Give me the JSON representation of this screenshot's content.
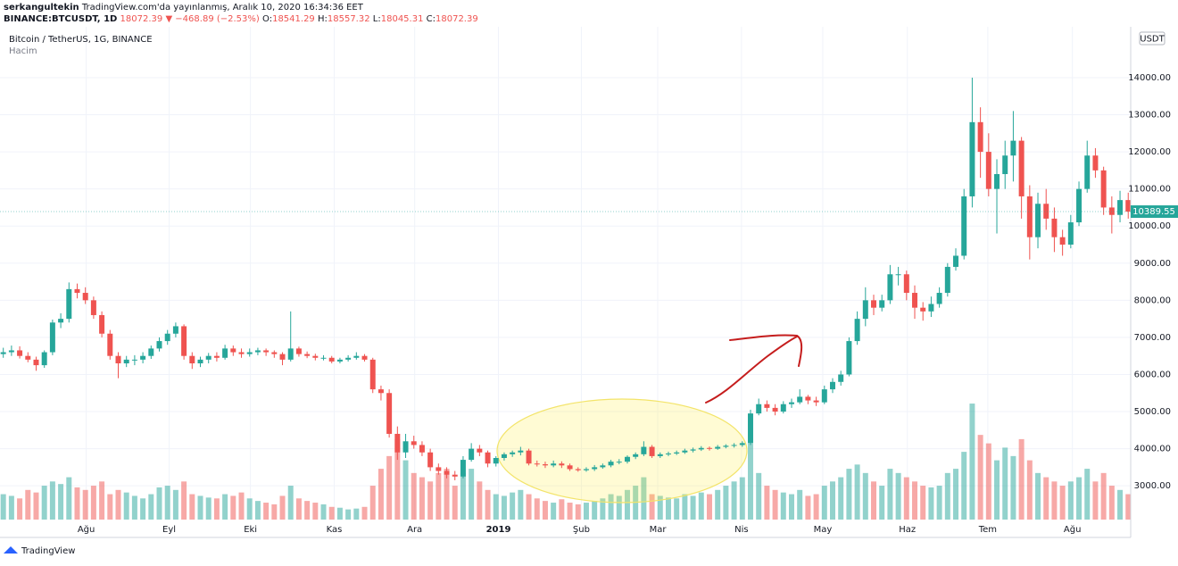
{
  "header": {
    "author": "serkangultekin",
    "published": "TradingView.com'da yayınlanmış, Aralık 10, 2020 16:34:36 EET",
    "symbol": "BINANCE:BTCUSDT, 1D",
    "price": "18072.39",
    "change": "▼ −468.89 (−2.53%)",
    "ohlc": [
      {
        "label": "O:",
        "value": "18541.29"
      },
      {
        "label": "H:",
        "value": "18557.32"
      },
      {
        "label": "L:",
        "value": "18045.31"
      },
      {
        "label": "C:",
        "value": "18072.39"
      }
    ]
  },
  "chart_data": {
    "type": "candlestick",
    "title": "Bitcoin / TetherUS, 1G, BINANCE",
    "volume_label": "Hacim",
    "currency": "USDT",
    "footer": "TradingView",
    "up_color": "#26a69a",
    "down_color": "#ef5350",
    "grid": true,
    "xlim": [
      -0.4,
      137.3
    ],
    "xticks": [
      {
        "value": 10.1,
        "label": "Ağu"
      },
      {
        "value": 20.2,
        "label": "Eyl"
      },
      {
        "value": 30.1,
        "label": "Eki"
      },
      {
        "value": 40.3,
        "label": "Kas"
      },
      {
        "value": 50.1,
        "label": "Ara"
      },
      {
        "value": 60.3,
        "label": "2019"
      },
      {
        "value": 70.4,
        "label": "Şub"
      },
      {
        "value": 79.7,
        "label": "Mar"
      },
      {
        "value": 89.9,
        "label": "Nis"
      },
      {
        "value": 99.8,
        "label": "May"
      },
      {
        "value": 110.1,
        "label": "Haz"
      },
      {
        "value": 119.9,
        "label": "Tem"
      },
      {
        "value": 130.2,
        "label": "Ağu"
      }
    ],
    "ylim": [
      2090,
      15370
    ],
    "yticks": [
      {
        "value": 3000,
        "label": "3000.00"
      },
      {
        "value": 4000,
        "label": "4000.00"
      },
      {
        "value": 5000,
        "label": "5000.00"
      },
      {
        "value": 6000,
        "label": "6000.00"
      },
      {
        "value": 7000,
        "label": "7000.00"
      },
      {
        "value": 8000,
        "label": "8000.00"
      },
      {
        "value": 9000,
        "label": "9000.00"
      },
      {
        "value": 10000,
        "label": "10000.00"
      },
      {
        "value": 11000,
        "label": "11000.00"
      },
      {
        "value": 12000,
        "label": "12000.00"
      },
      {
        "value": 13000,
        "label": "13000.00"
      },
      {
        "value": 14000,
        "label": "14000.00"
      }
    ],
    "vlim": [
      0,
      582
    ],
    "open": [
      6550,
      6600,
      6650,
      6500,
      6400,
      6250,
      6600,
      7400,
      7500,
      8300,
      8200,
      8000,
      7600,
      7100,
      6500,
      6300,
      6400,
      6400,
      6500,
      6700,
      6900,
      7100,
      7300,
      6500,
      6300,
      6400,
      6500,
      6450,
      6700,
      6600,
      6550,
      6600,
      6650,
      6600,
      6550,
      6400,
      6700,
      6550,
      6500,
      6450,
      6450,
      6350,
      6400,
      6450,
      6500,
      6400,
      5600,
      5500,
      4400,
      3900,
      4200,
      4100,
      3900,
      3500,
      3400,
      3300,
      3250,
      3700,
      4000,
      3900,
      3600,
      3750,
      3850,
      3900,
      3950,
      3600,
      3580,
      3550,
      3600,
      3550,
      3450,
      3420,
      3450,
      3500,
      3550,
      3650,
      3650,
      3780,
      3850,
      4050,
      3800,
      3850,
      3870,
      3900,
      3950,
      3980,
      4020,
      4000,
      4050,
      4080,
      4100,
      4150,
      4950,
      5200,
      5100,
      5000,
      5200,
      5250,
      5400,
      5300,
      5250,
      5600,
      5800,
      6000,
      6900,
      7500,
      8000,
      7800,
      8000,
      8700,
      8700,
      8200,
      7800,
      7700,
      7900,
      8200,
      8900,
      9200,
      10800,
      12800,
      12000,
      11000,
      11400,
      11900,
      12300,
      10800,
      9700,
      10600,
      10200,
      9700,
      9500,
      10100,
      11000,
      11900,
      11500,
      10500,
      10300,
      10700
    ],
    "high": [
      6720,
      6780,
      6760,
      6600,
      6480,
      6650,
      7480,
      7650,
      8480,
      8450,
      8350,
      8100,
      7700,
      7200,
      6600,
      6500,
      6520,
      6600,
      6780,
      7000,
      7200,
      7400,
      7350,
      6600,
      6480,
      6580,
      6600,
      6800,
      6780,
      6700,
      6700,
      6720,
      6700,
      6650,
      6600,
      7700,
      6750,
      6620,
      6560,
      6520,
      6500,
      6450,
      6520,
      6600,
      6550,
      6450,
      5700,
      5600,
      4600,
      4400,
      4350,
      4200,
      4000,
      3600,
      3500,
      3400,
      3800,
      4150,
      4100,
      3950,
      3800,
      3900,
      3950,
      4050,
      4000,
      3680,
      3650,
      3680,
      3660,
      3600,
      3500,
      3500,
      3560,
      3600,
      3700,
      3720,
      3820,
      3900,
      4200,
      4100,
      3900,
      3920,
      3950,
      4000,
      4030,
      4070,
      4060,
      4100,
      4120,
      4150,
      4200,
      5050,
      5350,
      5300,
      5200,
      5280,
      5350,
      5600,
      5450,
      5400,
      5700,
      5900,
      6100,
      7000,
      7700,
      8350,
      8150,
      8150,
      8950,
      8900,
      8800,
      8400,
      7950,
      8100,
      8350,
      9000,
      9400,
      11000,
      14000,
      13200,
      12500,
      11800,
      12300,
      13100,
      12400,
      11100,
      10900,
      11000,
      10500,
      9900,
      10300,
      11200,
      12300,
      12100,
      11600,
      10800,
      10950,
      10900
    ],
    "low": [
      6450,
      6500,
      6430,
      6330,
      6100,
      6180,
      6520,
      7250,
      7400,
      8050,
      7900,
      7500,
      7000,
      6400,
      5900,
      6200,
      6250,
      6300,
      6420,
      6620,
      6800,
      7000,
      6400,
      6150,
      6200,
      6300,
      6350,
      6400,
      6500,
      6450,
      6480,
      6520,
      6500,
      6450,
      6250,
      6350,
      6480,
      6440,
      6380,
      6380,
      6300,
      6300,
      6350,
      6400,
      6350,
      5500,
      5300,
      4300,
      3700,
      3750,
      4000,
      3800,
      3400,
      3300,
      3200,
      3150,
      3200,
      3650,
      3800,
      3500,
      3520,
      3680,
      3780,
      3820,
      3550,
      3520,
      3480,
      3500,
      3480,
      3400,
      3380,
      3380,
      3400,
      3460,
      3500,
      3580,
      3600,
      3720,
      3800,
      3750,
      3750,
      3800,
      3830,
      3860,
      3900,
      3940,
      3950,
      3970,
      4010,
      4030,
      4050,
      4100,
      4900,
      5000,
      4900,
      4950,
      5100,
      5200,
      5200,
      5150,
      5200,
      5500,
      5700,
      5950,
      6800,
      7300,
      7600,
      7700,
      7900,
      8400,
      8000,
      7500,
      7450,
      7550,
      7800,
      8100,
      8800,
      9100,
      10500,
      11300,
      10800,
      9800,
      11000,
      11200,
      10200,
      9100,
      9400,
      9900,
      9300,
      9200,
      9400,
      10000,
      10900,
      11300,
      10300,
      9800,
      10100,
      10200
    ],
    "close": [
      6600,
      6650,
      6500,
      6400,
      6250,
      6600,
      7400,
      7500,
      8300,
      8200,
      8000,
      7600,
      7100,
      6500,
      6300,
      6400,
      6400,
      6500,
      6700,
      6900,
      7100,
      7300,
      6500,
      6300,
      6400,
      6500,
      6450,
      6700,
      6600,
      6550,
      6600,
      6650,
      6600,
      6550,
      6400,
      6700,
      6550,
      6500,
      6450,
      6450,
      6350,
      6400,
      6450,
      6500,
      6400,
      5600,
      5500,
      4400,
      3900,
      4200,
      4100,
      3900,
      3500,
      3400,
      3300,
      3250,
      3700,
      4000,
      3900,
      3600,
      3750,
      3850,
      3900,
      3950,
      3600,
      3580,
      3550,
      3600,
      3550,
      3450,
      3420,
      3450,
      3500,
      3550,
      3650,
      3650,
      3780,
      3850,
      4050,
      3800,
      3850,
      3870,
      3900,
      3950,
      3980,
      4020,
      4000,
      4050,
      4080,
      4100,
      4150,
      4950,
      5200,
      5100,
      5000,
      5200,
      5250,
      5400,
      5300,
      5250,
      5600,
      5800,
      6000,
      6900,
      7500,
      8000,
      7800,
      8000,
      8700,
      8700,
      8200,
      7800,
      7700,
      7900,
      8200,
      8900,
      9200,
      10800,
      12800,
      12000,
      11000,
      11400,
      11900,
      12300,
      10800,
      9700,
      10600,
      10200,
      9700,
      9500,
      10100,
      11000,
      11900,
      11500,
      10500,
      10300,
      10700,
      10389.55
    ],
    "volume": [
      30,
      28,
      25,
      35,
      32,
      40,
      45,
      42,
      50,
      38,
      35,
      40,
      45,
      30,
      35,
      32,
      28,
      25,
      30,
      38,
      40,
      35,
      45,
      30,
      28,
      26,
      25,
      30,
      28,
      32,
      25,
      22,
      20,
      18,
      28,
      40,
      25,
      22,
      20,
      18,
      15,
      14,
      12,
      13,
      15,
      40,
      60,
      75,
      95,
      70,
      55,
      50,
      45,
      55,
      60,
      40,
      55,
      60,
      45,
      35,
      30,
      28,
      32,
      35,
      30,
      25,
      22,
      20,
      24,
      20,
      18,
      20,
      22,
      25,
      30,
      28,
      35,
      40,
      50,
      30,
      28,
      26,
      25,
      30,
      28,
      32,
      30,
      35,
      40,
      45,
      50,
      90,
      55,
      40,
      35,
      32,
      30,
      35,
      28,
      30,
      40,
      45,
      50,
      60,
      65,
      55,
      45,
      40,
      60,
      55,
      50,
      45,
      40,
      38,
      40,
      55,
      60,
      80,
      137,
      100,
      90,
      70,
      85,
      75,
      95,
      70,
      55,
      50,
      45,
      40,
      45,
      50,
      60,
      45,
      55,
      40,
      35,
      30
    ]
  }
}
